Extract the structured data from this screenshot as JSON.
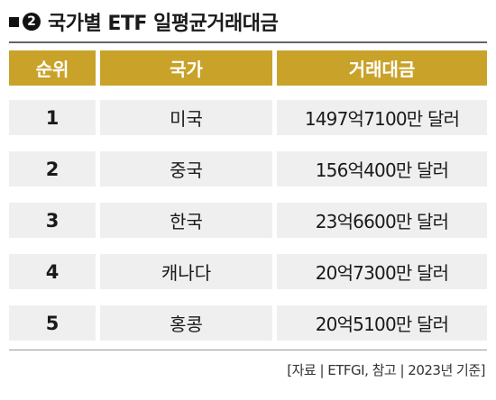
{
  "title": {
    "number": "2",
    "text": "국가별 ETF 일평균거래대금"
  },
  "table": {
    "headers": [
      "순위",
      "국가",
      "거래대금"
    ],
    "rows": [
      {
        "rank": "1",
        "country": "미국",
        "amount": "1497억7100만 달러"
      },
      {
        "rank": "2",
        "country": "중국",
        "amount": "156억400만 달러"
      },
      {
        "rank": "3",
        "country": "한국",
        "amount": "23억6600만 달러"
      },
      {
        "rank": "4",
        "country": "캐나다",
        "amount": "20억7300만 달러"
      },
      {
        "rank": "5",
        "country": "홍콩",
        "amount": "20억5100만 달러"
      }
    ]
  },
  "source": "[자료 | ETFGI, 참고 | 2023년 기준]",
  "colors": {
    "header_bg": "#c9a22a",
    "row_bg": "#efefef"
  }
}
